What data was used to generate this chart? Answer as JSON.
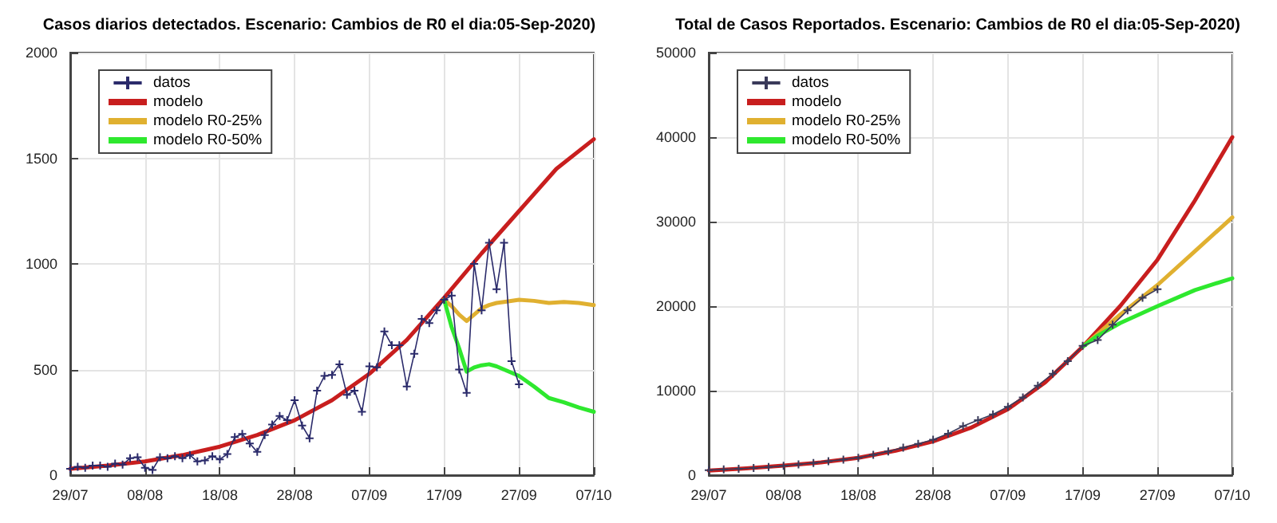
{
  "chart_data": [
    {
      "type": "line",
      "title": "Casos diarios detectados. Escenario: Cambios de R0 el dia:05-Sep-2020)",
      "grid": true,
      "legend": "top left",
      "xlim": [
        "--07-29",
        "--10-07"
      ],
      "xticks": [
        {
          "value": "--07-29",
          "label": "29/07"
        },
        {
          "value": "--08-08",
          "label": "08/08"
        },
        {
          "value": "--08-18",
          "label": "18/08"
        },
        {
          "value": "--08-28",
          "label": "28/08"
        },
        {
          "value": "--09-07",
          "label": "07/09"
        },
        {
          "value": "--09-17",
          "label": "17/09"
        },
        {
          "value": "--09-27",
          "label": "27/09"
        },
        {
          "value": "--10-07",
          "label": "07/10"
        }
      ],
      "ylim": [
        0,
        2000
      ],
      "yticks": [
        0,
        500,
        1000,
        1500,
        2000
      ],
      "series": [
        {
          "name": "datos",
          "color": "#2b2b6b",
          "marker": "cross",
          "x": [
            "--07-29",
            "--07-30",
            "--07-31",
            "--08-01",
            "--08-02",
            "--08-03",
            "--08-04",
            "--08-05",
            "--08-06",
            "--08-07",
            "--08-08",
            "--08-09",
            "--08-10",
            "--08-11",
            "--08-12",
            "--08-13",
            "--08-14",
            "--08-15",
            "--08-16",
            "--08-17",
            "--08-18",
            "--08-19",
            "--08-20",
            "--08-21",
            "--08-22",
            "--08-23",
            "--08-24",
            "--08-25",
            "--08-26",
            "--08-27",
            "--08-28",
            "--08-29",
            "--08-30",
            "--08-31",
            "--09-01",
            "--09-02",
            "--09-03",
            "--09-04",
            "--09-05",
            "--09-06",
            "--09-07",
            "--09-08",
            "--09-09",
            "--09-10",
            "--09-11",
            "--09-12",
            "--09-13",
            "--09-14",
            "--09-15",
            "--09-16",
            "--09-17",
            "--09-18",
            "--09-19",
            "--09-20",
            "--09-21",
            "--09-22",
            "--09-23",
            "--09-24",
            "--09-25",
            "--09-26",
            "--09-27"
          ],
          "values": [
            30,
            40,
            35,
            45,
            45,
            40,
            55,
            50,
            80,
            85,
            35,
            25,
            85,
            80,
            90,
            80,
            95,
            65,
            70,
            90,
            75,
            100,
            180,
            195,
            150,
            110,
            190,
            240,
            280,
            260,
            355,
            235,
            175,
            400,
            470,
            475,
            525,
            380,
            400,
            300,
            515,
            510,
            680,
            615,
            615,
            420,
            575,
            740,
            720,
            780,
            830,
            850,
            500,
            390,
            1000,
            780,
            1100,
            880,
            1100,
            540,
            430
          ]
        },
        {
          "name": "modelo",
          "color": "#c81e1e",
          "marker": "none",
          "x": [
            "--07-29",
            "--08-03",
            "--08-08",
            "--08-13",
            "--08-18",
            "--08-23",
            "--08-28",
            "--09-02",
            "--09-07",
            "--09-12",
            "--09-17",
            "--09-22",
            "--09-27",
            "--10-02",
            "--10-07"
          ],
          "values": [
            30,
            45,
            65,
            95,
            135,
            190,
            260,
            355,
            480,
            640,
            840,
            1050,
            1250,
            1450,
            1590
          ]
        },
        {
          "name": "modelo R0-25%",
          "color": "#e0b030",
          "marker": "none",
          "x": [
            "--09-17",
            "--09-18",
            "--09-19",
            "--09-20",
            "--09-21",
            "--09-22",
            "--09-23",
            "--09-24",
            "--09-25",
            "--09-27",
            "--09-29",
            "--10-01",
            "--10-03",
            "--10-05",
            "--10-07"
          ],
          "values": [
            830,
            800,
            760,
            730,
            760,
            790,
            805,
            815,
            820,
            830,
            825,
            815,
            820,
            815,
            805
          ]
        },
        {
          "name": "modelo R0-50%",
          "color": "#2ee82e",
          "marker": "none",
          "x": [
            "--09-17",
            "--09-18",
            "--09-19",
            "--09-20",
            "--09-21",
            "--09-22",
            "--09-23",
            "--09-24",
            "--09-25",
            "--09-27",
            "--09-29",
            "--10-01",
            "--10-03",
            "--10-05",
            "--10-07"
          ],
          "values": [
            830,
            700,
            600,
            490,
            510,
            520,
            525,
            515,
            500,
            470,
            420,
            365,
            345,
            320,
            300
          ]
        }
      ]
    },
    {
      "type": "line",
      "title": "Total de Casos Reportados. Escenario: Cambios de R0 el dia:05-Sep-2020)",
      "grid": true,
      "legend": "top left",
      "xlim": [
        "--07-29",
        "--10-07"
      ],
      "xticks": [
        {
          "value": "--07-29",
          "label": "29/07"
        },
        {
          "value": "--08-08",
          "label": "08/08"
        },
        {
          "value": "--08-18",
          "label": "18/08"
        },
        {
          "value": "--08-28",
          "label": "28/08"
        },
        {
          "value": "--09-07",
          "label": "07/09"
        },
        {
          "value": "--09-17",
          "label": "17/09"
        },
        {
          "value": "--09-27",
          "label": "27/09"
        },
        {
          "value": "--10-07",
          "label": "07/10"
        }
      ],
      "ylim": [
        0,
        50000
      ],
      "yticks": [
        0,
        10000,
        20000,
        30000,
        40000,
        50000
      ],
      "series": [
        {
          "name": "datos",
          "color": "#3a3a5a",
          "marker": "cross",
          "x": [
            "--07-29",
            "--07-31",
            "--08-02",
            "--08-04",
            "--08-06",
            "--08-08",
            "--08-10",
            "--08-12",
            "--08-14",
            "--08-16",
            "--08-18",
            "--08-20",
            "--08-22",
            "--08-24",
            "--08-26",
            "--08-28",
            "--08-30",
            "--09-01",
            "--09-03",
            "--09-05",
            "--09-07",
            "--09-09",
            "--09-11",
            "--09-13",
            "--09-15",
            "--09-17",
            "--09-19",
            "--09-21",
            "--09-23",
            "--09-25",
            "--09-27"
          ],
          "values": [
            600,
            680,
            760,
            850,
            960,
            1100,
            1270,
            1450,
            1650,
            1850,
            2050,
            2400,
            2800,
            3250,
            3700,
            4200,
            4900,
            5800,
            6500,
            7200,
            8100,
            9200,
            10600,
            12000,
            13500,
            15300,
            16000,
            17800,
            19500,
            21000,
            22000
          ]
        },
        {
          "name": "modelo",
          "color": "#c81e1e",
          "marker": "none",
          "x": [
            "--07-29",
            "--08-03",
            "--08-08",
            "--08-13",
            "--08-18",
            "--08-23",
            "--08-28",
            "--09-02",
            "--09-07",
            "--09-12",
            "--09-17",
            "--09-22",
            "--09-27",
            "--10-02",
            "--10-07"
          ],
          "values": [
            550,
            800,
            1130,
            1500,
            2050,
            2900,
            4000,
            5600,
            7800,
            11000,
            15200,
            20000,
            25500,
            32500,
            40000
          ]
        },
        {
          "name": "modelo R0-25%",
          "color": "#e0b030",
          "marker": "none",
          "x": [
            "--09-17",
            "--09-22",
            "--09-27",
            "--10-02",
            "--10-07"
          ],
          "values": [
            15200,
            19000,
            22500,
            26500,
            30500
          ]
        },
        {
          "name": "modelo R0-50%",
          "color": "#2ee82e",
          "marker": "none",
          "x": [
            "--09-17",
            "--09-19",
            "--09-22",
            "--09-27",
            "--10-02",
            "--10-07"
          ],
          "values": [
            15200,
            16500,
            18000,
            20000,
            21900,
            23300
          ]
        }
      ]
    }
  ]
}
